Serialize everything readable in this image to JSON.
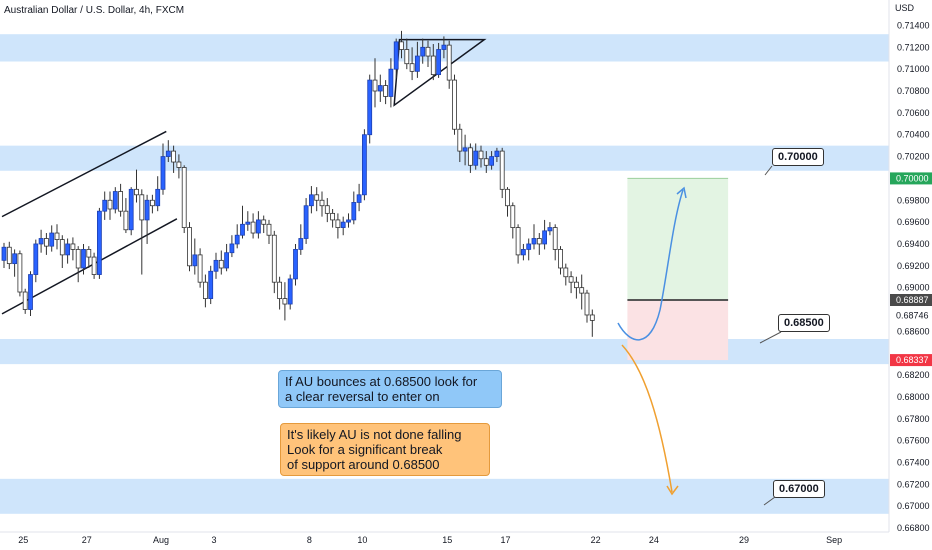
{
  "header": {
    "title": "Australian Dollar / U.S. Dollar, 4h, FXCM",
    "currency": "USD"
  },
  "annotations": {
    "bounce": "If AU bounces at 0.68500 look for\na clear reversal to enter on",
    "fall": "It's likely AU is not done falling\nLook for a significant break\nof support around 0.68500"
  },
  "levels": {
    "upper": "0.70000",
    "middle": "0.68500",
    "lower": "0.67000"
  },
  "colors": {
    "zone": "#cfe5fb",
    "bull": "#2962ff",
    "bear": "#ffffff",
    "wick": "#333333",
    "target": "#e3f4e3",
    "stop": "#fbe2e4",
    "entry": "#555555",
    "green_tag": "#26a65b",
    "red_tag": "#f23645",
    "gray_tag": "#4a4a4a",
    "blue_arrow": "#4a90e2",
    "orange_arrow": "#f0a030"
  },
  "chart_data": {
    "type": "candlestick",
    "title": "Australian Dollar / U.S. Dollar, 4h, FXCM",
    "ylim": [
      0.668,
      0.7145
    ],
    "x_ticks": [
      {
        "i": 4,
        "label": "25"
      },
      {
        "i": 16,
        "label": "27"
      },
      {
        "i": 30,
        "label": "Aug"
      },
      {
        "i": 40,
        "label": "3"
      },
      {
        "i": 58,
        "label": "8"
      },
      {
        "i": 68,
        "label": "10"
      },
      {
        "i": 84,
        "label": "15"
      },
      {
        "i": 95,
        "label": "17"
      },
      {
        "i": 112,
        "label": "22"
      },
      {
        "i": 123,
        "label": "24"
      },
      {
        "i": 140,
        "label": "29"
      },
      {
        "i": 157,
        "label": "Sep"
      }
    ],
    "y_ticks": [
      "0.71400",
      "0.71200",
      "0.71000",
      "0.70800",
      "0.70600",
      "0.70400",
      "0.70200",
      "0.69800",
      "0.69600",
      "0.69400",
      "0.69200",
      "0.69000",
      "0.68600",
      "0.68200",
      "0.68000",
      "0.67800",
      "0.67600",
      "0.67400",
      "0.67200",
      "0.67000",
      "0.66800"
    ],
    "price_tags": [
      {
        "value": "0.70000",
        "price": 0.7,
        "kind": "green"
      },
      {
        "value": "0.68887",
        "price": 0.68887,
        "kind": "gray"
      },
      {
        "value": "0.68746",
        "price": 0.68746,
        "kind": "plain"
      },
      {
        "value": "0.68337",
        "price": 0.68337,
        "kind": "red"
      }
    ],
    "zones": [
      [
        0.7107,
        0.7132
      ],
      [
        0.7007,
        0.703
      ],
      [
        0.683,
        0.6853
      ],
      [
        0.6693,
        0.6725
      ]
    ],
    "position": {
      "entry": 0.68887,
      "target": 0.7,
      "stop": 0.68337,
      "start_i": 118,
      "end_i": 137
    },
    "patterns": {
      "channel_upper": [
        [
          0,
          0.6965
        ],
        [
          31,
          0.7043
        ]
      ],
      "channel_lower": [
        [
          0,
          0.6876
        ],
        [
          33,
          0.6963
        ]
      ],
      "triangle": [
        [
          75,
          0.7127
        ],
        [
          91,
          0.7127
        ],
        [
          74,
          0.7067
        ]
      ]
    },
    "candles": [
      [
        0.6925,
        0.6937,
        0.6918,
        0.6941
      ],
      [
        0.6937,
        0.6922,
        0.6917,
        0.6942
      ],
      [
        0.6922,
        0.6931,
        0.691,
        0.6935
      ],
      [
        0.6931,
        0.6896,
        0.6892,
        0.6934
      ],
      [
        0.6896,
        0.688,
        0.6876,
        0.6899
      ],
      [
        0.688,
        0.6912,
        0.6874,
        0.6915
      ],
      [
        0.6912,
        0.694,
        0.6905,
        0.6944
      ],
      [
        0.694,
        0.6945,
        0.6932,
        0.6953
      ],
      [
        0.6945,
        0.6938,
        0.693,
        0.695
      ],
      [
        0.6938,
        0.695,
        0.6933,
        0.6957
      ],
      [
        0.695,
        0.6944,
        0.6935,
        0.6958
      ],
      [
        0.6944,
        0.693,
        0.6918,
        0.6948
      ],
      [
        0.693,
        0.694,
        0.6922,
        0.6945
      ],
      [
        0.694,
        0.6935,
        0.6925,
        0.6946
      ],
      [
        0.6935,
        0.6918,
        0.6905,
        0.6938
      ],
      [
        0.6918,
        0.6935,
        0.6912,
        0.694
      ],
      [
        0.6935,
        0.6928,
        0.6918,
        0.6938
      ],
      [
        0.6928,
        0.6912,
        0.6908,
        0.6932
      ],
      [
        0.6912,
        0.697,
        0.6908,
        0.6973
      ],
      [
        0.697,
        0.698,
        0.6962,
        0.6988
      ],
      [
        0.698,
        0.6972,
        0.6962,
        0.6988
      ],
      [
        0.6972,
        0.6988,
        0.6968,
        0.6992
      ],
      [
        0.6988,
        0.697,
        0.6965,
        0.6995
      ],
      [
        0.697,
        0.6953,
        0.695,
        0.6982
      ],
      [
        0.6953,
        0.699,
        0.6948,
        0.6992
      ],
      [
        0.699,
        0.6985,
        0.6978,
        0.7008
      ],
      [
        0.6985,
        0.6962,
        0.6912,
        0.699
      ],
      [
        0.6962,
        0.698,
        0.694,
        0.6985
      ],
      [
        0.698,
        0.6975,
        0.6968,
        0.6985
      ],
      [
        0.6975,
        0.699,
        0.697,
        0.7002
      ],
      [
        0.699,
        0.702,
        0.6985,
        0.7032
      ],
      [
        0.702,
        0.7025,
        0.7015,
        0.7035
      ],
      [
        0.7025,
        0.7015,
        0.7005,
        0.703
      ],
      [
        0.7015,
        0.701,
        0.7,
        0.7022
      ],
      [
        0.701,
        0.6955,
        0.695,
        0.7012
      ],
      [
        0.6955,
        0.692,
        0.6915,
        0.696
      ],
      [
        0.692,
        0.693,
        0.6912,
        0.6945
      ],
      [
        0.693,
        0.6905,
        0.69,
        0.6936
      ],
      [
        0.6905,
        0.689,
        0.6882,
        0.6912
      ],
      [
        0.689,
        0.6915,
        0.6885,
        0.692
      ],
      [
        0.6915,
        0.6925,
        0.6908,
        0.6932
      ],
      [
        0.6925,
        0.6918,
        0.6912,
        0.6934
      ],
      [
        0.6918,
        0.6932,
        0.6915,
        0.694
      ],
      [
        0.6932,
        0.694,
        0.6928,
        0.6948
      ],
      [
        0.694,
        0.6948,
        0.6936,
        0.6958
      ],
      [
        0.6948,
        0.6958,
        0.6945,
        0.6975
      ],
      [
        0.6958,
        0.696,
        0.6952,
        0.697
      ],
      [
        0.696,
        0.695,
        0.6945,
        0.6968
      ],
      [
        0.695,
        0.6962,
        0.6945,
        0.697
      ],
      [
        0.6962,
        0.6958,
        0.695,
        0.6966
      ],
      [
        0.6958,
        0.6948,
        0.694,
        0.6962
      ],
      [
        0.6948,
        0.6905,
        0.6895,
        0.6952
      ],
      [
        0.6905,
        0.689,
        0.688,
        0.691
      ],
      [
        0.689,
        0.6885,
        0.687,
        0.6905
      ],
      [
        0.6885,
        0.6908,
        0.688,
        0.6912
      ],
      [
        0.6908,
        0.6935,
        0.6902,
        0.694
      ],
      [
        0.6935,
        0.6945,
        0.693,
        0.6958
      ],
      [
        0.6945,
        0.6975,
        0.694,
        0.6982
      ],
      [
        0.6975,
        0.6985,
        0.6968,
        0.6993
      ],
      [
        0.6985,
        0.698,
        0.697,
        0.6992
      ],
      [
        0.698,
        0.6975,
        0.6965,
        0.6988
      ],
      [
        0.6975,
        0.6968,
        0.696,
        0.6982
      ],
      [
        0.6968,
        0.6962,
        0.6955,
        0.6972
      ],
      [
        0.6962,
        0.6955,
        0.6945,
        0.6968
      ],
      [
        0.6955,
        0.696,
        0.6948,
        0.6965
      ],
      [
        0.696,
        0.6962,
        0.6955,
        0.6968
      ],
      [
        0.6962,
        0.6978,
        0.6958,
        0.6988
      ],
      [
        0.6978,
        0.6985,
        0.697,
        0.6995
      ],
      [
        0.6985,
        0.704,
        0.698,
        0.7045
      ],
      [
        0.704,
        0.709,
        0.7032,
        0.7095
      ],
      [
        0.709,
        0.708,
        0.7065,
        0.711
      ],
      [
        0.708,
        0.7085,
        0.707,
        0.7095
      ],
      [
        0.7085,
        0.7075,
        0.7068,
        0.709
      ],
      [
        0.7075,
        0.71,
        0.7065,
        0.711
      ],
      [
        0.71,
        0.7125,
        0.7092,
        0.7128
      ],
      [
        0.7125,
        0.7118,
        0.711,
        0.7135
      ],
      [
        0.7118,
        0.7105,
        0.71,
        0.7128
      ],
      [
        0.7105,
        0.7098,
        0.709,
        0.712
      ],
      [
        0.7098,
        0.7112,
        0.7092,
        0.7125
      ],
      [
        0.7112,
        0.712,
        0.7105,
        0.7128
      ],
      [
        0.712,
        0.7112,
        0.7102,
        0.7126
      ],
      [
        0.7112,
        0.7095,
        0.709,
        0.7123
      ],
      [
        0.7095,
        0.7118,
        0.7092,
        0.7124
      ],
      [
        0.7118,
        0.7122,
        0.711,
        0.713
      ],
      [
        0.7122,
        0.709,
        0.7082,
        0.7126
      ],
      [
        0.709,
        0.7045,
        0.704,
        0.7095
      ],
      [
        0.7045,
        0.7025,
        0.7015,
        0.705
      ],
      [
        0.7025,
        0.7028,
        0.7012,
        0.704
      ],
      [
        0.7028,
        0.7012,
        0.7005,
        0.7032
      ],
      [
        0.7012,
        0.7025,
        0.7008,
        0.7032
      ],
      [
        0.7025,
        0.7018,
        0.701,
        0.703
      ],
      [
        0.7018,
        0.7012,
        0.7005,
        0.7025
      ],
      [
        0.7012,
        0.702,
        0.7008,
        0.7025
      ],
      [
        0.702,
        0.7025,
        0.7015,
        0.7028
      ],
      [
        0.7025,
        0.699,
        0.6982,
        0.7028
      ],
      [
        0.699,
        0.6975,
        0.6965,
        0.6992
      ],
      [
        0.6975,
        0.6955,
        0.6945,
        0.6978
      ],
      [
        0.6955,
        0.693,
        0.6922,
        0.6958
      ],
      [
        0.693,
        0.6935,
        0.6925,
        0.694
      ],
      [
        0.6935,
        0.694,
        0.6925,
        0.6945
      ],
      [
        0.694,
        0.6945,
        0.6935,
        0.6958
      ],
      [
        0.6945,
        0.694,
        0.693,
        0.695
      ],
      [
        0.694,
        0.6952,
        0.6935,
        0.6962
      ],
      [
        0.6952,
        0.6955,
        0.6948,
        0.696
      ],
      [
        0.6955,
        0.6935,
        0.6925,
        0.6958
      ],
      [
        0.6935,
        0.6918,
        0.6912,
        0.6938
      ],
      [
        0.6918,
        0.691,
        0.6902,
        0.6922
      ],
      [
        0.691,
        0.6905,
        0.6895,
        0.6915
      ],
      [
        0.6905,
        0.69,
        0.689,
        0.691
      ],
      [
        0.69,
        0.6895,
        0.688,
        0.6912
      ],
      [
        0.6895,
        0.6875,
        0.6868,
        0.6898
      ],
      [
        0.6875,
        0.687,
        0.6855,
        0.688
      ]
    ]
  }
}
